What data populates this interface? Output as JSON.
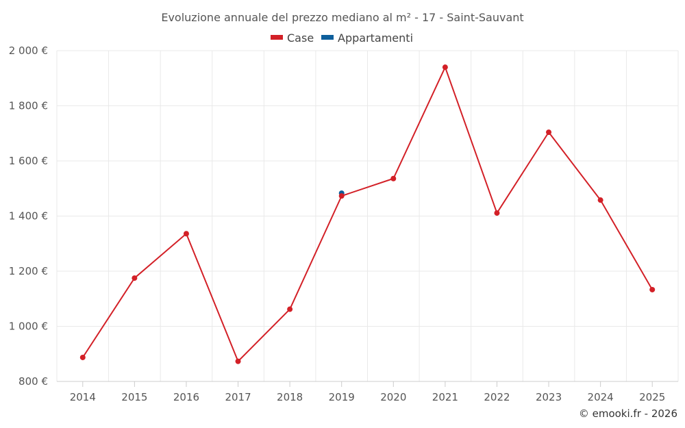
{
  "chart_data": {
    "type": "line",
    "title": "Evoluzione annuale del prezzo mediano al m² - 17 - Saint-Sauvant",
    "categories": [
      "2014",
      "2015",
      "2016",
      "2017",
      "2018",
      "2019",
      "2020",
      "2021",
      "2022",
      "2023",
      "2024",
      "2025"
    ],
    "series": [
      {
        "name": "Case",
        "color": "#d32027",
        "values": [
          887,
          1175,
          1336,
          873,
          1062,
          1473,
          1536,
          1940,
          1411,
          1704,
          1458,
          1133
        ]
      },
      {
        "name": "Appartamenti",
        "color": "#0e5f9c",
        "values": [
          null,
          null,
          null,
          null,
          null,
          1483,
          null,
          null,
          null,
          null,
          null,
          null
        ]
      }
    ],
    "ylim": [
      800,
      2000
    ],
    "yticks": [
      800,
      1000,
      1200,
      1400,
      1600,
      1800,
      2000
    ],
    "ytick_labels": [
      "800 €",
      "1 000 €",
      "1 200 €",
      "1 400 €",
      "1 600 €",
      "1 800 €",
      "2 000 €"
    ],
    "xlabel": "",
    "ylabel": "",
    "legend_position": "top-center",
    "grid": true
  },
  "credit": "© emooki.fr - 2026"
}
